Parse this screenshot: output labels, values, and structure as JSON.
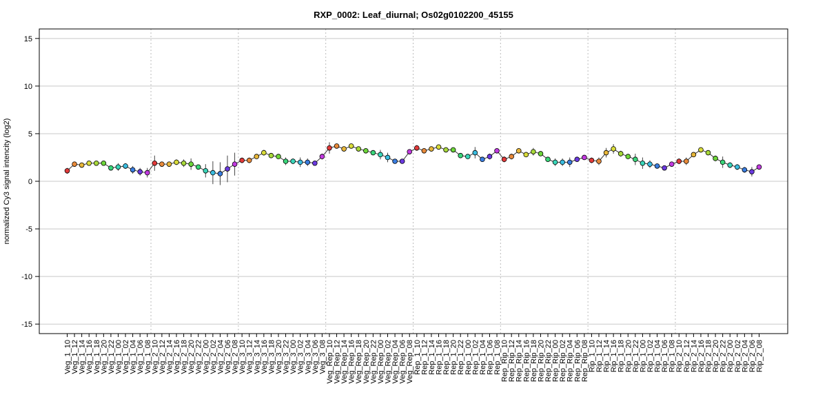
{
  "chart_data": {
    "type": "line",
    "title": "RXP_0002: Leaf_diurnal; Os02g0102200_45155",
    "xlabel": "",
    "ylabel": "normalized Cy3 signal intencity (log2)",
    "ylim": [
      -16,
      16
    ],
    "yticks": [
      -15,
      -10,
      -5,
      0,
      5,
      10,
      15
    ],
    "grid": true,
    "legend": "none",
    "categories": [
      "Veg_1_10",
      "Veg_1_12",
      "Veg_1_14",
      "Veg_1_16",
      "Veg_1_18",
      "Veg_1_20",
      "Veg_1_22",
      "Veg_1_00",
      "Veg_1_02",
      "Veg_1_04",
      "Veg_1_06",
      "Veg_1_08",
      "Veg_2_10",
      "Veg_2_12",
      "Veg_2_14",
      "Veg_2_16",
      "Veg_2_18",
      "Veg_2_20",
      "Veg_2_22",
      "Veg_2_00",
      "Veg_2_02",
      "Veg_2_04",
      "Veg_2_06",
      "Veg_2_08",
      "Veg_3_10",
      "Veg_3_12",
      "Veg_3_14",
      "Veg_3_16",
      "Veg_3_18",
      "Veg_3_20",
      "Veg_3_22",
      "Veg_3_00",
      "Veg_3_02",
      "Veg_3_04",
      "Veg_3_06",
      "Veg_3_08",
      "Veg_Rep_10",
      "Veg_Rep_12",
      "Veg_Rep_14",
      "Veg_Rep_16",
      "Veg_Rep_18",
      "Veg_Rep_20",
      "Veg_Rep_22",
      "Veg_Rep_00",
      "Veg_Rep_02",
      "Veg_Rep_04",
      "Veg_Rep_06",
      "Veg_Rep_08",
      "Rep_1_10",
      "Rep_1_12",
      "Rep_1_14",
      "Rep_1_16",
      "Rep_1_18",
      "Rep_1_20",
      "Rep_1_22",
      "Rep_1_00",
      "Rep_1_02",
      "Rep_1_04",
      "Rep_1_06",
      "Rep_1_08",
      "Rep_Rip_10",
      "Rep_Rip_12",
      "Rep_Rip_14",
      "Rep_Rip_16",
      "Rep_Rip_18",
      "Rep_Rip_20",
      "Rep_Rip_22",
      "Rep_Rip_00",
      "Rep_Rip_02",
      "Rep_Rip_04",
      "Rep_Rip_06",
      "Rep_Rip_08",
      "Rip_1_10",
      "Rip_1_12",
      "Rip_1_14",
      "Rip_1_16",
      "Rip_1_18",
      "Rip_1_20",
      "Rip_1_22",
      "Rip_1_00",
      "Rip_1_02",
      "Rip_1_04",
      "Rip_1_06",
      "Rip_1_08",
      "Rip_2_10",
      "Rip_2_12",
      "Rip_2_14",
      "Rip_2_16",
      "Rip_2_18",
      "Rip_2_20",
      "Rip_2_22",
      "Rip_2_00",
      "Rip_2_02",
      "Rip_2_04",
      "Rip_2_06",
      "Rip_2_08"
    ],
    "series": [
      {
        "values": [
          1.1,
          1.8,
          1.7,
          1.9,
          1.9,
          1.9,
          1.4,
          1.5,
          1.6,
          1.2,
          1.0,
          0.9,
          1.9,
          1.8,
          1.8,
          2.0,
          1.9,
          1.8,
          1.5,
          1.1,
          0.9,
          0.8,
          1.3,
          1.8,
          2.2,
          2.2,
          2.6,
          3.0,
          2.7,
          2.6,
          2.1,
          2.1,
          2.0,
          2.0,
          1.9,
          2.6,
          3.5,
          3.7,
          3.4,
          3.7,
          3.4,
          3.2,
          3.0,
          2.8,
          2.5,
          2.1,
          2.1,
          3.1,
          3.5,
          3.2,
          3.4,
          3.6,
          3.3,
          3.3,
          2.7,
          2.6,
          3.0,
          2.3,
          2.6,
          3.2,
          2.3,
          2.6,
          3.2,
          2.8,
          3.1,
          2.9,
          2.3,
          2.0,
          2.0,
          2.0,
          2.3,
          2.5,
          2.2,
          2.1,
          3.0,
          3.4,
          2.9,
          2.6,
          2.3,
          1.9,
          1.8,
          1.6,
          1.4,
          1.8,
          2.1,
          2.1,
          2.8,
          3.3,
          3.0,
          2.4,
          2.0,
          1.7,
          1.5,
          1.2,
          1.0,
          1.5
        ],
        "error": [
          0.3,
          0.2,
          0.2,
          0.2,
          0.2,
          0.2,
          0.2,
          0.4,
          0.3,
          0.4,
          0.4,
          0.5,
          0.8,
          0.2,
          0.2,
          0.3,
          0.4,
          0.6,
          0.2,
          0.7,
          1.2,
          1.2,
          1.4,
          1.2,
          0.3,
          0.3,
          0.2,
          0.3,
          0.2,
          0.2,
          0.4,
          0.3,
          0.5,
          0.4,
          0.2,
          0.3,
          0.6,
          0.2,
          0.2,
          0.2,
          0.2,
          0.2,
          0.2,
          0.5,
          0.5,
          0.2,
          0.2,
          0.2,
          0.3,
          0.2,
          0.2,
          0.2,
          0.2,
          0.2,
          0.2,
          0.2,
          0.6,
          0.2,
          0.3,
          0.2,
          0.3,
          0.3,
          0.2,
          0.2,
          0.4,
          0.2,
          0.2,
          0.4,
          0.4,
          0.5,
          0.2,
          0.2,
          0.3,
          0.4,
          0.5,
          0.5,
          0.3,
          0.2,
          0.6,
          0.6,
          0.4,
          0.2,
          0.2,
          0.2,
          0.3,
          0.4,
          0.2,
          0.2,
          0.2,
          0.3,
          0.6,
          0.3,
          0.3,
          0.3,
          0.5,
          0.2
        ],
        "colors": [
          "#e23a3a",
          "#e88a3a",
          "#e8b73a",
          "#d9dc3a",
          "#a8d93a",
          "#6dd63a",
          "#3ad67a",
          "#3ad6b9",
          "#3abde0",
          "#3a7de0",
          "#6b3ae0",
          "#c23ae0",
          "#e23a3a",
          "#e88a3a",
          "#e8b73a",
          "#d9dc3a",
          "#a8d93a",
          "#6dd63a",
          "#3ad67a",
          "#3ad6b9",
          "#3abde0",
          "#3a7de0",
          "#6b3ae0",
          "#c23ae0",
          "#e23a3a",
          "#e88a3a",
          "#e8b73a",
          "#d9dc3a",
          "#a8d93a",
          "#6dd63a",
          "#3ad67a",
          "#3ad6b9",
          "#3abde0",
          "#3a7de0",
          "#6b3ae0",
          "#c23ae0",
          "#e23a3a",
          "#e88a3a",
          "#e8b73a",
          "#d9dc3a",
          "#a8d93a",
          "#6dd63a",
          "#3ad67a",
          "#3ad6b9",
          "#3abde0",
          "#3a7de0",
          "#6b3ae0",
          "#c23ae0",
          "#e23a3a",
          "#e88a3a",
          "#e8b73a",
          "#d9dc3a",
          "#a8d93a",
          "#6dd63a",
          "#3ad67a",
          "#3ad6b9",
          "#3abde0",
          "#3a7de0",
          "#6b3ae0",
          "#c23ae0",
          "#e23a3a",
          "#e88a3a",
          "#e8b73a",
          "#d9dc3a",
          "#a8d93a",
          "#6dd63a",
          "#3ad67a",
          "#3ad6b9",
          "#3abde0",
          "#3a7de0",
          "#6b3ae0",
          "#c23ae0",
          "#e23a3a",
          "#e88a3a",
          "#e8b73a",
          "#d9dc3a",
          "#a8d93a",
          "#6dd63a",
          "#3ad67a",
          "#3ad6b9",
          "#3abde0",
          "#3a7de0",
          "#6b3ae0",
          "#c23ae0",
          "#e23a3a",
          "#e88a3a",
          "#e8b73a",
          "#d9dc3a",
          "#a8d93a",
          "#6dd63a",
          "#3ad67a",
          "#3ad6b9",
          "#3abde0",
          "#3a7de0",
          "#6b3ae0",
          "#c23ae0"
        ]
      }
    ],
    "group_separators_after_index": [
      11,
      23,
      35,
      47,
      59,
      71,
      83
    ],
    "colors": {
      "line": "#333333",
      "gridline": "#c8c8c8",
      "separator": "#bbbbbb",
      "axis": "#000000",
      "text": "#000000"
    }
  }
}
